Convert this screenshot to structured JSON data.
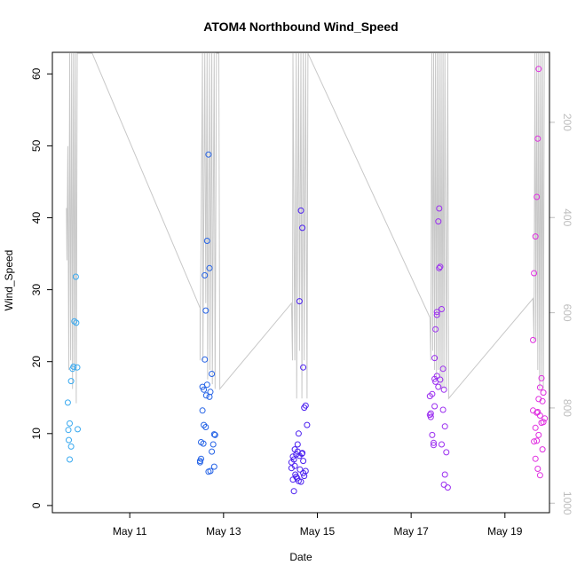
{
  "chart_data": {
    "type": "scatter",
    "title": "ATOM4 Northbound Wind_Speed",
    "xlabel": "Date",
    "ylabel": "Wind_Speed",
    "x_tick_labels": [
      "May 11",
      "May 13",
      "May 15",
      "May 17",
      "May 19"
    ],
    "x_ticks": [
      11,
      13,
      15,
      17,
      19
    ],
    "xlim": [
      9.35,
      19.95
    ],
    "y_ticks": [
      0,
      10,
      20,
      30,
      40,
      50,
      60
    ],
    "ylim": [
      -1,
      63
    ],
    "y2_ticks": [
      200,
      400,
      600,
      800,
      1000
    ],
    "y2_lim": [
      53,
      1020
    ],
    "y2_color": "#bdbdbd",
    "grid": false,
    "point_colors": [
      "#38a9f0",
      "#2563e6",
      "#4a1ff0",
      "#9b2ef0",
      "#e02ee0"
    ],
    "clusters": [
      {
        "x": [
          9.68,
          9.69,
          9.72,
          9.7,
          9.75,
          9.8,
          9.78,
          9.82,
          9.86,
          9.85,
          9.89,
          9.88,
          9.75,
          9.72
        ],
        "y": [
          14.3,
          10.5,
          11.4,
          9.1,
          17.3,
          19.3,
          19.0,
          25.6,
          25.4,
          31.8,
          10.6,
          19.2,
          8.2,
          6.4
        ]
      },
      {
        "x": [
          12.5,
          12.52,
          12.55,
          12.58,
          12.6,
          12.62,
          12.65,
          12.68,
          12.7,
          12.72,
          12.75,
          12.78,
          12.8,
          12.82,
          12.6,
          12.55,
          12.7,
          12.65,
          12.58,
          12.62,
          12.75,
          12.52,
          12.5,
          12.8,
          12.72,
          12.68,
          12.57,
          12.63
        ],
        "y": [
          6.2,
          8.8,
          16.5,
          16.1,
          32.0,
          27.1,
          36.8,
          48.8,
          33.0,
          15.8,
          18.3,
          8.5,
          9.9,
          9.8,
          20.3,
          13.2,
          15.1,
          16.8,
          11.2,
          10.9,
          7.5,
          6.5,
          6.0,
          5.4,
          4.8,
          4.7,
          8.6,
          15.3
        ]
      },
      {
        "x": [
          14.45,
          14.48,
          14.5,
          14.52,
          14.55,
          14.58,
          14.6,
          14.62,
          14.65,
          14.68,
          14.7,
          14.72,
          14.75,
          14.78,
          14.5,
          14.55,
          14.6,
          14.65,
          14.7,
          14.48,
          14.52,
          14.58,
          14.62,
          14.68,
          14.72,
          14.75,
          14.45,
          14.57,
          14.63,
          14.67,
          14.53,
          14.7
        ],
        "y": [
          5.2,
          3.6,
          6.4,
          7.8,
          7.1,
          8.5,
          10.0,
          28.4,
          41.0,
          38.6,
          19.2,
          13.6,
          13.9,
          11.2,
          2.0,
          4.0,
          3.4,
          3.3,
          4.5,
          6.8,
          5.5,
          7.5,
          6.9,
          7.3,
          4.1,
          4.8,
          6.0,
          3.8,
          5.0,
          7.2,
          4.3,
          6.2
        ]
      },
      {
        "x": [
          17.4,
          17.42,
          17.45,
          17.48,
          17.5,
          17.52,
          17.55,
          17.58,
          17.6,
          17.62,
          17.65,
          17.68,
          17.7,
          17.72,
          17.75,
          17.78,
          17.45,
          17.5,
          17.55,
          17.6,
          17.42,
          17.48,
          17.52,
          17.58,
          17.62,
          17.68,
          17.72,
          17.4,
          17.5,
          17.55,
          17.65,
          17.7
        ],
        "y": [
          15.2,
          12.8,
          9.8,
          8.4,
          20.5,
          24.5,
          26.5,
          39.5,
          41.3,
          33.2,
          27.3,
          19.0,
          16.1,
          11.0,
          7.4,
          2.5,
          15.5,
          17.6,
          18.0,
          33.0,
          12.3,
          8.7,
          17.2,
          16.5,
          17.5,
          13.3,
          4.3,
          12.6,
          13.8,
          26.9,
          8.5,
          2.9
        ]
      },
      {
        "x": [
          19.6,
          19.62,
          19.65,
          19.68,
          19.7,
          19.72,
          19.75,
          19.78,
          19.8,
          19.82,
          19.85,
          19.65,
          19.7,
          19.75,
          19.68,
          19.72,
          19.78,
          19.62,
          19.8,
          19.65,
          19.7,
          19.75,
          19.6,
          19.82,
          19.68,
          19.72
        ],
        "y": [
          23.0,
          32.3,
          37.4,
          42.9,
          51.0,
          60.7,
          16.4,
          17.7,
          14.5,
          15.7,
          12.1,
          10.8,
          13.0,
          12.5,
          9.0,
          9.8,
          11.5,
          8.9,
          7.8,
          6.5,
          5.1,
          4.2,
          13.2,
          11.6,
          12.9,
          14.8
        ]
      }
    ],
    "line_series": {
      "name": "",
      "color": "#c8c8c8",
      "y2_x": [
        9.65,
        9.66,
        9.68,
        9.7,
        9.72,
        9.74,
        9.76,
        9.78,
        9.8,
        9.82,
        9.84,
        9.86,
        9.88,
        9.9,
        9.92,
        9.94,
        9.96,
        10.2,
        12.5,
        12.5,
        12.55,
        12.56,
        12.6,
        12.62,
        12.65,
        12.66,
        12.7,
        12.71,
        12.75,
        12.76,
        12.8,
        12.82,
        12.85,
        12.9,
        12.92,
        14.45,
        14.47,
        14.48,
        14.52,
        14.55,
        14.56,
        14.6,
        14.62,
        14.65,
        14.67,
        14.7,
        14.72,
        14.75,
        14.78,
        14.8,
        17.4,
        17.42,
        17.44,
        17.46,
        17.48,
        17.5,
        17.52,
        17.54,
        17.56,
        17.58,
        17.6,
        17.62,
        17.64,
        17.66,
        17.68,
        17.7,
        17.72,
        17.75,
        17.78,
        17.8,
        19.6,
        19.62,
        19.64,
        19.66,
        19.68,
        19.7,
        19.72,
        19.74,
        19.76,
        19.78,
        19.8,
        19.82,
        19.84
      ],
      "y2_y": [
        380,
        490,
        250,
        720,
        55,
        700,
        55,
        760,
        55,
        720,
        55,
        790,
        55,
        55,
        55,
        55,
        55,
        55,
        590,
        700,
        55,
        700,
        55,
        580,
        55,
        740,
        55,
        720,
        55,
        750,
        55,
        760,
        55,
        55,
        760,
        580,
        700,
        55,
        700,
        55,
        780,
        55,
        680,
        55,
        780,
        55,
        700,
        55,
        780,
        55,
        610,
        700,
        55,
        680,
        55,
        720,
        55,
        740,
        55,
        720,
        55,
        760,
        55,
        760,
        55,
        760,
        55,
        760,
        55,
        780,
        570,
        660,
        55,
        660,
        55,
        720,
        55,
        760,
        55,
        740,
        55,
        760,
        55
      ]
    }
  }
}
